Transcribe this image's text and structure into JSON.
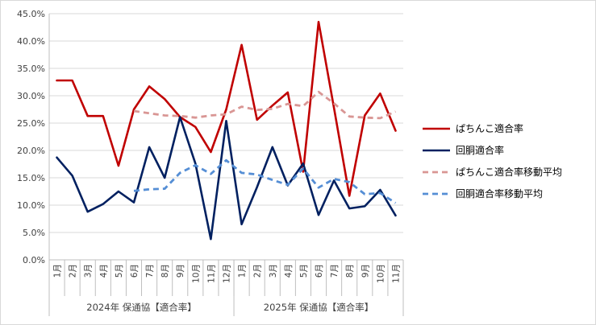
{
  "chart_data": {
    "type": "line",
    "title": "",
    "xlabel": "",
    "ylabel": "",
    "ylim": [
      0,
      45
    ],
    "y_ticks": [
      "0.0%",
      "5.0%",
      "10.0%",
      "15.0%",
      "20.0%",
      "25.0%",
      "30.0%",
      "35.0%",
      "40.0%",
      "45.0%"
    ],
    "categories": [
      "1月",
      "2月",
      "3月",
      "4月",
      "5月",
      "6月",
      "7月",
      "8月",
      "9月",
      "10月",
      "11月",
      "12月",
      "1月",
      "2月",
      "3月",
      "4月",
      "5月",
      "6月",
      "7月",
      "8月",
      "9月",
      "10月",
      "11月"
    ],
    "groups": [
      {
        "label": "2024年 保通協【適合率】",
        "start": 0,
        "end": 11
      },
      {
        "label": "2025年 保通協【適合率】",
        "start": 12,
        "end": 22
      }
    ],
    "grid": true,
    "legend_position": "right",
    "series": [
      {
        "name": "ぱちんこ適合率",
        "color": "#c00000",
        "style": "solid",
        "values": [
          32.8,
          32.8,
          26.3,
          26.3,
          17.2,
          27.5,
          31.7,
          29.4,
          26.1,
          24.3,
          19.7,
          27.5,
          39.3,
          25.6,
          28.2,
          30.6,
          16.1,
          43.5,
          27.8,
          11.7,
          26.4,
          30.4,
          23.6
        ]
      },
      {
        "name": "回胴適合率",
        "color": "#002060",
        "style": "solid",
        "values": [
          18.7,
          15.4,
          8.8,
          10.2,
          12.5,
          10.5,
          20.6,
          15.0,
          26.1,
          17.6,
          3.8,
          25.4,
          6.5,
          13.3,
          20.6,
          13.6,
          17.6,
          8.2,
          14.5,
          9.4,
          9.8,
          12.8,
          8.1
        ]
      },
      {
        "name": "ぱちんこ適合率移動平均",
        "color": "#d99694",
        "style": "dashed",
        "values": [
          null,
          null,
          null,
          null,
          null,
          27.2,
          26.8,
          26.4,
          26.3,
          26.0,
          26.4,
          26.6,
          28.0,
          27.4,
          27.6,
          28.5,
          28.1,
          30.7,
          28.6,
          26.2,
          26.0,
          25.9,
          27.1
        ]
      },
      {
        "name": "回胴適合率移動平均",
        "color": "#558ed5",
        "style": "dashed",
        "values": [
          null,
          null,
          null,
          null,
          null,
          12.6,
          12.9,
          13.0,
          15.9,
          17.3,
          15.7,
          18.2,
          15.9,
          15.6,
          14.6,
          13.7,
          16.7,
          13.2,
          14.8,
          14.2,
          12.0,
          12.2,
          10.4
        ]
      }
    ]
  }
}
